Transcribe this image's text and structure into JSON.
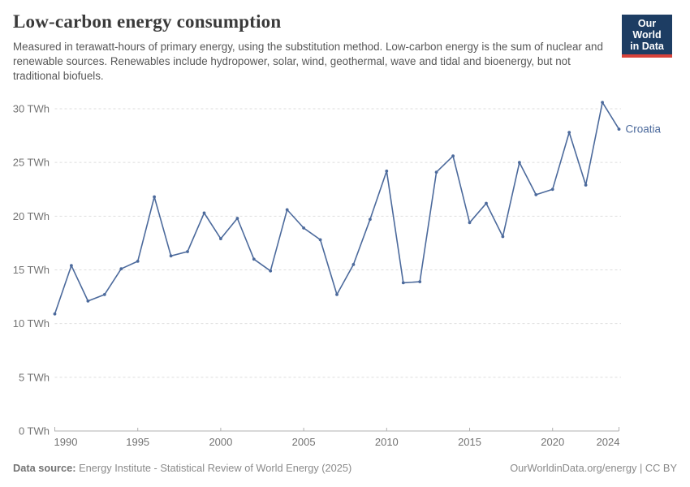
{
  "header": {
    "title": "Low-carbon energy consumption",
    "subtitle": "Measured in terawatt-hours of primary energy, using the substitution method. Low-carbon energy is the sum of nuclear and renewable sources. Renewables include hydropower, solar, wind, geothermal, wave and tidal and bioenergy, but not traditional biofuels.",
    "logo": {
      "line1": "Our World",
      "line2": "in Data"
    }
  },
  "chart_data": {
    "type": "line",
    "title": "Low-carbon energy consumption",
    "entity": "Croatia",
    "unit": "TWh",
    "x": [
      1990,
      1991,
      1992,
      1993,
      1994,
      1995,
      1996,
      1997,
      1998,
      1999,
      2000,
      2001,
      2002,
      2003,
      2004,
      2005,
      2006,
      2007,
      2008,
      2009,
      2010,
      2011,
      2012,
      2013,
      2014,
      2015,
      2016,
      2017,
      2018,
      2019,
      2020,
      2021,
      2022,
      2023,
      2024
    ],
    "series": [
      {
        "name": "Croatia",
        "color": "#4c6a9c",
        "values": [
          10.9,
          15.4,
          12.1,
          12.7,
          15.1,
          15.8,
          21.8,
          16.3,
          16.7,
          20.3,
          17.9,
          19.8,
          16.0,
          14.9,
          20.6,
          18.9,
          17.8,
          12.7,
          15.5,
          19.7,
          24.2,
          13.8,
          13.9,
          24.1,
          25.6,
          19.4,
          21.2,
          18.1,
          25.0,
          22.0,
          22.5,
          27.8,
          22.9,
          30.6,
          28.1
        ]
      }
    ],
    "xlim": [
      1990,
      2024
    ],
    "ylim": [
      0,
      30
    ],
    "x_ticks": [
      1990,
      1995,
      2000,
      2005,
      2010,
      2015,
      2020,
      2024
    ],
    "y_ticks": [
      0,
      5,
      10,
      15,
      20,
      25,
      30
    ],
    "y_tick_suffix": " TWh",
    "grid": "horizontal-dashed",
    "legend_position": "end-of-line",
    "end_label": "Croatia"
  },
  "footer": {
    "source_label": "Data source:",
    "source_text": " Energy Institute - Statistical Review of World Energy (2025)",
    "rights": "OurWorldinData.org/energy | CC BY"
  },
  "colors": {
    "accent_line": "#4c6a9c",
    "logo_bg": "#1d3d63",
    "logo_stripe": "#d7423a",
    "grid": "#dedede",
    "axis": "#b0b0b0",
    "tick_label": "#737373",
    "title_text": "#3a3a3a",
    "subtitle_text": "#575757",
    "footer_text": "#8a8a8a"
  }
}
